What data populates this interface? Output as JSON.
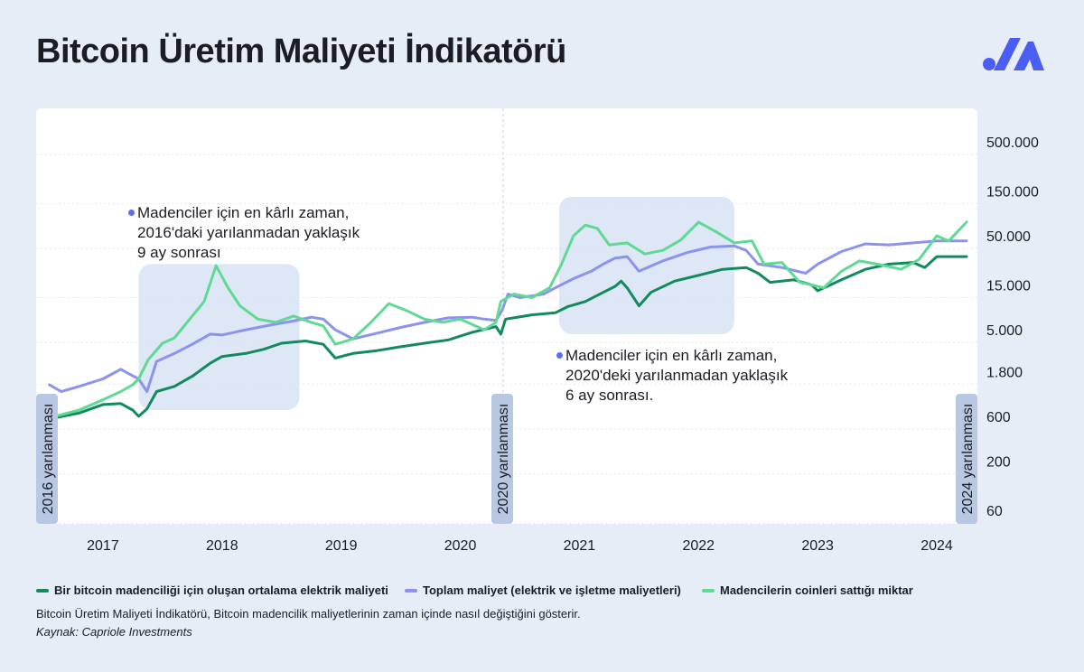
{
  "title": "Bitcoin Üretim Maliyeti İndikatörü",
  "colors": {
    "electric": "#128a5e",
    "total": "#8c93ee",
    "sold": "#5fd994",
    "highlight": "#d6e1f2",
    "halving_line": "#c9ced8",
    "halving_label_bg": "#b9c8e2",
    "dot": "#5a6ff0"
  },
  "annotations": [
    {
      "lines": [
        "Madenciler için en kârlı zaman,",
        "2016'daki yarılanmadan yaklaşık",
        "9 ay sonrası"
      ]
    },
    {
      "lines": [
        "Madenciler için en kârlı zaman,",
        "2020'deki yarılanmadan yaklaşık",
        "6 ay sonrası."
      ]
    }
  ],
  "legend": [
    {
      "label": "Bir bitcoin madenciliği için oluşan ortalama elektrik maliyeti",
      "color": "#128a5e"
    },
    {
      "label": "Toplam maliyet (elektrik ve işletme maliyetleri)",
      "color": "#8c93ee"
    },
    {
      "label": "Madencilerin coinleri sattığı miktar",
      "color": "#5fd994"
    }
  ],
  "note": "Bitcoin Üretim Maliyeti İndikatörü, Bitcoin madencilik maliyetlerinin zaman içinde nasıl değiştiğini gösterir.",
  "source": "Kaynak: Capriole Investments",
  "chart_data": {
    "type": "line",
    "y_scale": "log",
    "y_ticks": [
      {
        "value": 60,
        "label": "60"
      },
      {
        "value": 200,
        "label": "200"
      },
      {
        "value": 600,
        "label": "600"
      },
      {
        "value": 1800,
        "label": "1.800"
      },
      {
        "value": 5000,
        "label": "5.000"
      },
      {
        "value": 15000,
        "label": "15.000"
      },
      {
        "value": 50000,
        "label": "50.000"
      },
      {
        "value": 150000,
        "label": "150.000"
      },
      {
        "value": 500000,
        "label": "500.000"
      }
    ],
    "x_range": [
      2016.5,
      2024.25
    ],
    "x_ticks": [
      {
        "value": 2017,
        "label": "2017"
      },
      {
        "value": 2018,
        "label": "2018"
      },
      {
        "value": 2019,
        "label": "2019"
      },
      {
        "value": 2020,
        "label": "2020"
      },
      {
        "value": 2021,
        "label": "2021"
      },
      {
        "value": 2022,
        "label": "2022"
      },
      {
        "value": 2023,
        "label": "2023"
      },
      {
        "value": 2024,
        "label": "2024"
      }
    ],
    "grid": true,
    "halvings": [
      {
        "x": 2016.5,
        "label": "2016 yarılanması"
      },
      {
        "x": 2020.36,
        "label": "2020 yarılanması"
      },
      {
        "x": 2024.3,
        "label": "2024 yarılanması"
      }
    ],
    "highlight_periods": [
      {
        "x": [
          2017.3,
          2018.65
        ],
        "y": [
          700,
          25000
        ]
      },
      {
        "x": [
          2020.83,
          2022.3
        ],
        "y": [
          4500,
          130000
        ]
      }
    ],
    "series": [
      {
        "name": "Bir bitcoin madenciliği için oluşan ortalama elektrik maliyeti",
        "color": "#128a5e",
        "x": [
          2016.6,
          2016.8,
          2017.0,
          2017.15,
          2017.25,
          2017.3,
          2017.37,
          2017.45,
          2017.6,
          2017.75,
          2017.9,
          2018.0,
          2018.2,
          2018.35,
          2018.5,
          2018.7,
          2018.85,
          2018.95,
          2019.1,
          2019.3,
          2019.5,
          2019.7,
          2019.9,
          2020.1,
          2020.3,
          2020.34,
          2020.38,
          2020.45,
          2020.6,
          2020.8,
          2020.9,
          2021.05,
          2021.2,
          2021.3,
          2021.35,
          2021.4,
          2021.5,
          2021.6,
          2021.8,
          2022.0,
          2022.2,
          2022.4,
          2022.5,
          2022.6,
          2022.8,
          2022.95,
          2023.0,
          2023.2,
          2023.4,
          2023.6,
          2023.8,
          2023.9,
          2024.0,
          2024.25
        ],
        "y": [
          580,
          650,
          800,
          820,
          700,
          600,
          720,
          1100,
          1250,
          1600,
          2200,
          2600,
          2800,
          3100,
          3600,
          3800,
          3500,
          2500,
          2800,
          3000,
          3300,
          3600,
          3900,
          4700,
          5400,
          4500,
          6500,
          6700,
          7200,
          7600,
          8800,
          10000,
          12500,
          14500,
          16500,
          14000,
          9000,
          12500,
          16500,
          19000,
          22000,
          23000,
          20000,
          16000,
          17000,
          15000,
          13000,
          17000,
          22000,
          25000,
          26000,
          23000,
          30000,
          30000
        ]
      },
      {
        "name": "Toplam maliyet (elektrik ve işletme maliyetleri)",
        "color": "#8c93ee",
        "x": [
          2016.55,
          2016.65,
          2016.8,
          2017.0,
          2017.15,
          2017.22,
          2017.3,
          2017.37,
          2017.45,
          2017.6,
          2017.75,
          2017.9,
          2018.0,
          2018.2,
          2018.4,
          2018.6,
          2018.75,
          2018.85,
          2018.95,
          2019.1,
          2019.3,
          2019.5,
          2019.7,
          2019.9,
          2020.1,
          2020.2,
          2020.3,
          2020.35,
          2020.4,
          2020.5,
          2020.7,
          2020.8,
          2020.95,
          2021.1,
          2021.2,
          2021.3,
          2021.4,
          2021.5,
          2021.7,
          2021.9,
          2022.1,
          2022.3,
          2022.4,
          2022.5,
          2022.7,
          2022.9,
          2023.0,
          2023.2,
          2023.4,
          2023.6,
          2023.8,
          2024.0,
          2024.25
        ],
        "y": [
          1300,
          1100,
          1250,
          1500,
          1900,
          1700,
          1500,
          1100,
          2300,
          2800,
          3500,
          4500,
          4400,
          5000,
          5600,
          6200,
          6800,
          6500,
          5000,
          4000,
          4600,
          5300,
          6000,
          6700,
          6800,
          6500,
          6300,
          8000,
          12000,
          11000,
          12000,
          14000,
          17500,
          21000,
          25000,
          29000,
          30000,
          21000,
          27000,
          33000,
          38000,
          39000,
          35000,
          25000,
          23000,
          20000,
          25000,
          34000,
          41000,
          40000,
          42000,
          44000,
          44000
        ]
      },
      {
        "name": "Madencilerin coinleri sattığı miktar",
        "color": "#5fd994",
        "x": [
          2016.6,
          2016.8,
          2017.0,
          2017.15,
          2017.25,
          2017.3,
          2017.38,
          2017.5,
          2017.6,
          2017.75,
          2017.85,
          2017.95,
          2018.05,
          2018.15,
          2018.3,
          2018.45,
          2018.6,
          2018.75,
          2018.85,
          2018.95,
          2019.1,
          2019.25,
          2019.4,
          2019.55,
          2019.7,
          2019.85,
          2020.0,
          2020.2,
          2020.3,
          2020.34,
          2020.45,
          2020.6,
          2020.75,
          2020.85,
          2020.95,
          2021.05,
          2021.15,
          2021.25,
          2021.4,
          2021.55,
          2021.7,
          2021.85,
          2022.0,
          2022.15,
          2022.3,
          2022.45,
          2022.55,
          2022.7,
          2022.85,
          2022.95,
          2023.05,
          2023.2,
          2023.35,
          2023.5,
          2023.7,
          2023.85,
          2024.0,
          2024.1,
          2024.25
        ],
        "y": [
          600,
          700,
          900,
          1100,
          1300,
          1500,
          2400,
          3600,
          4100,
          7000,
          10000,
          24000,
          14000,
          9000,
          6500,
          6000,
          7000,
          6000,
          5500,
          3500,
          4000,
          6000,
          9500,
          8000,
          6500,
          6000,
          6500,
          5000,
          6000,
          10000,
          12000,
          11000,
          14000,
          25000,
          50000,
          65000,
          60000,
          40000,
          42000,
          32000,
          35000,
          45000,
          70000,
          55000,
          42000,
          44000,
          25000,
          26000,
          16000,
          15000,
          14000,
          21000,
          27000,
          25000,
          22000,
          28000,
          50000,
          44000,
          70000
        ]
      }
    ]
  }
}
